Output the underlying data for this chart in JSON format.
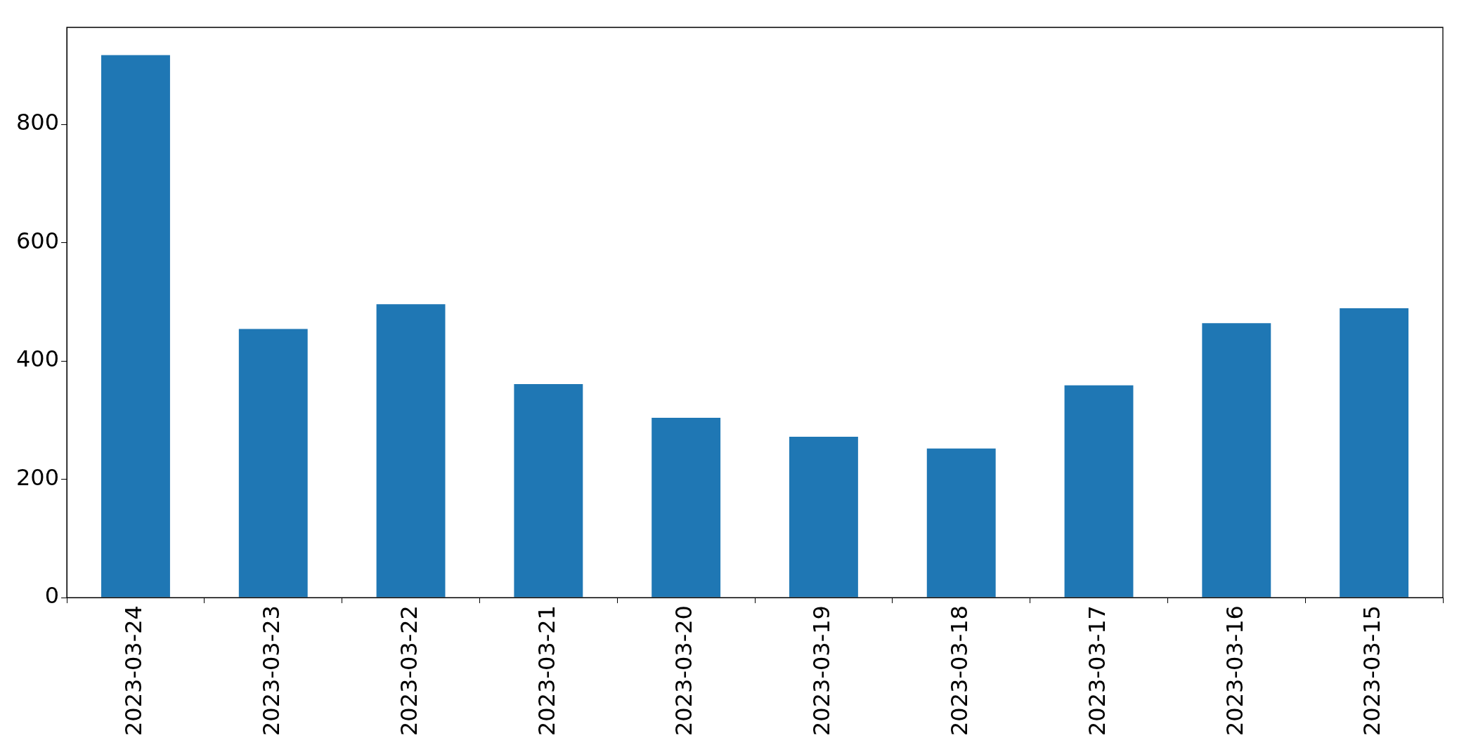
{
  "chart_data": {
    "type": "bar",
    "categories": [
      "2023-03-24",
      "2023-03-23",
      "2023-03-22",
      "2023-03-21",
      "2023-03-20",
      "2023-03-19",
      "2023-03-18",
      "2023-03-17",
      "2023-03-16",
      "2023-03-15"
    ],
    "values": [
      917,
      454,
      496,
      361,
      304,
      272,
      252,
      359,
      464,
      489
    ],
    "color": "#1f77b4",
    "ylim": [
      0,
      964
    ],
    "yticks": [
      0,
      200,
      400,
      600,
      800
    ],
    "legend": false
  }
}
